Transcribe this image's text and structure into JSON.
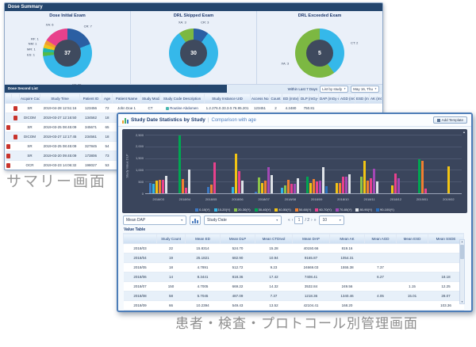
{
  "icons": {
    "chevron_down": "▼",
    "arrow_up": "▲",
    "arrow_down": "▼",
    "pager_first": "«",
    "pager_prev": "‹",
    "pager_next": "›",
    "pager_last": "»"
  },
  "captions": {
    "summary": "サマリー画面",
    "management": "患者・検査・プロトコール別管理画面"
  },
  "summary_window": {
    "title": "Dose Summary",
    "donuts": [
      {
        "title": "Dose Initial Exam",
        "total": "37",
        "slices": [
          {
            "label": "CR: 7",
            "value": 7,
            "color": "#2b5fa3"
          },
          {
            "label": "CT: 20",
            "value": 20,
            "color": "#35b8ea"
          },
          {
            "label": "ES: 1",
            "value": 1,
            "color": "#53b948"
          },
          {
            "label": "MR: 1",
            "value": 1,
            "color": "#1fb5ad"
          },
          {
            "label": "NM: 1",
            "value": 1,
            "color": "#f0c419"
          },
          {
            "label": "RF: 1",
            "value": 1,
            "color": "#f29b30"
          },
          {
            "label": "XA: 6",
            "value": 6,
            "color": "#e8418c"
          }
        ]
      },
      {
        "title": "DRL Skipped Exam",
        "total": "30",
        "slices": [
          {
            "label": "CR: 3",
            "value": 3,
            "color": "#2b5fa3"
          },
          {
            "label": "CT: 24",
            "value": 24,
            "color": "#35b8ea"
          },
          {
            "label": "XA: 3",
            "value": 3,
            "color": "#7cb842"
          }
        ]
      },
      {
        "title": "DRL Exceeded Exam",
        "total": "5",
        "slices": [
          {
            "label": "CT: 2",
            "value": 2,
            "color": "#35b8ea"
          },
          {
            "label": "XA: 3",
            "value": 3,
            "color": "#7cb842"
          }
        ]
      }
    ],
    "list": {
      "title": "Dose Second List",
      "filter_label": "Within Last 7 Days",
      "filter_selects": [
        "List by study",
        "May 16, Thu"
      ],
      "columns": [
        "",
        "",
        "Acquire Code",
        "Study Time",
        "Patient ID",
        "Age",
        "Patient Name",
        "Study Modality",
        "Study Code Description",
        "Study Instance UID",
        "Access No.",
        "Count",
        "ED (mSv)",
        "DLP (mGy·cm)",
        "DAP (mGy·cm2)",
        "AGD (mGy)",
        "ESD (mGy)",
        "AK (mGy)"
      ],
      "rows": [
        {
          "icons": [
            "",
            "pdf"
          ],
          "cells": [
            "SR",
            "2019-04-28 12:51:16",
            "123456",
            "72",
            "John Doe 1",
            "CT",
            "Routine Abdomen",
            "1.2.276.0.33.3.0.76.95.201",
            "123451",
            "2",
            "4.2480",
            "750.81",
            "",
            "",
            "",
            ""
          ]
        },
        {
          "icons": [
            "",
            "pdf"
          ],
          "cells": [
            "DICOM",
            "2019-03-27 12:16:50",
            "134562",
            "18",
            "John Doe 2",
            "CR",
            "Chest",
            "1.2.456.280803.0.53.7552",
            "134562",
            "1",
            "5.8415",
            "",
            "273.10",
            "",
            "",
            ""
          ]
        },
        {
          "icons": [
            "alert",
            ""
          ],
          "cells": [
            "SR",
            "2019-03-25 08:45:09",
            "345671",
            "65",
            "John Doe 3",
            "XA",
            "RunOff Lower Extremity",
            "1.2.840.758.52.125.21.201",
            "345621",
            "147",
            "17.0864",
            "",
            "14902.80",
            "",
            "",
            "930"
          ]
        },
        {
          "icons": [
            "",
            "pdf"
          ],
          "cells": [
            "DICOM",
            "2019-03-27 12:17:45",
            "234561",
            "18",
            "John Doe 2",
            "",
            "",
            "",
            "",
            "",
            "",
            "",
            "",
            "",
            "",
            ""
          ]
        },
        {
          "icons": [
            "alert",
            ""
          ],
          "cells": [
            "SR",
            "2019-03-25 08:45:09",
            "327845",
            "54",
            "John Doe 3",
            "",
            "",
            "",
            "",
            "",
            "",
            "",
            "",
            "",
            "",
            ""
          ]
        },
        {
          "icons": [
            "alert",
            ""
          ],
          "cells": [
            "SR",
            "2019-03-20 09:45:09",
            "173806",
            "73",
            "John Doe 3",
            "",
            "",
            "",
            "",
            "",
            "",
            "",
            "",
            "",
            "",
            ""
          ]
        },
        {
          "icons": [
            "alert",
            ""
          ],
          "cells": [
            "OCR",
            "2019-03-23 14:06:32",
            "198027",
            "53",
            "John Doe 4",
            "",
            "",
            "",
            "",
            "",
            "",
            "",
            "",
            "",
            "",
            ""
          ]
        },
        {
          "icons": [
            "alert",
            "warn"
          ],
          "cells": [
            "OCR",
            "2019-03-23 14:05:32",
            "190528",
            "53",
            "John Doe 4",
            "",
            "",
            "",
            "",
            "",
            "",
            "",
            "",
            "",
            "",
            ""
          ]
        },
        {
          "icons": [
            "",
            "pdf"
          ],
          "cells": [
            "DICOM",
            "2019-03-25 12:07:03",
            "108875",
            "18",
            "John Doe 5",
            "",
            "",
            "",
            "",
            "",
            "",
            "",
            "",
            "",
            "",
            ""
          ]
        }
      ]
    }
  },
  "stats_window": {
    "title": "Study Date Statistics by Study",
    "separator": "|",
    "subtitle": "Comparison with age",
    "add_button": "Add Template",
    "controls": {
      "metric_select": "Mean DAP",
      "axis_select": "Study Date",
      "page_current": "1",
      "page_total": "/ 2",
      "page_size": "10"
    },
    "value_table": {
      "title": "Value Table",
      "columns": [
        "",
        "Study Count",
        "Mean ED",
        "Mean DLP",
        "Mean CTDIvol",
        "Mean DAP",
        "Mean AK",
        "Mean AGD",
        "Mean ESD",
        "Mean SSDE"
      ],
      "rows": [
        [
          "2018/03",
          "22",
          "15.8314",
          "524.70",
          "15.28",
          "40150.66",
          "819.16",
          "",
          "",
          ""
        ],
        [
          "2018/04",
          "19",
          "25.1821",
          "682.90",
          "10.94",
          "9165.87",
          "1054.31",
          "",
          "",
          ""
        ],
        [
          "2018/05",
          "18",
          "4.7891",
          "512.72",
          "9.23",
          "24669.03",
          "1555.38",
          "7.37",
          "",
          ""
        ],
        [
          "2018/06",
          "14",
          "8.3441",
          "818.36",
          "17.42",
          "7408.41",
          "",
          "6.27",
          "",
          "18.18"
        ],
        [
          "2018/07",
          "150",
          "4.7005",
          "669.22",
          "14.32",
          "3532.84",
          "249.56",
          "",
          "1.15",
          "12.25"
        ],
        [
          "2018/08",
          "58",
          "5.7045",
          "487.09",
          "7.37",
          "1218.36",
          "1340.46",
          "4.05",
          "15.01",
          "28.07"
        ],
        [
          "2018/09",
          "66",
          "10.2394",
          "549.43",
          "13.52",
          "42104.41",
          "168.20",
          "",
          "",
          "103.36"
        ],
        [
          "2018/10",
          "61",
          "5.0527",
          "622.81",
          "7.09",
          "3045.03",
          "22.56",
          "8.62",
          "1.64",
          ""
        ]
      ]
    }
  },
  "chart_data": {
    "type": "bar",
    "title": "Study Date Statistics by Study",
    "subtitle": "Comparison with age",
    "xlabel": "Study Date",
    "ylabel": "Study Value DLP",
    "ylim": [
      0,
      2500
    ],
    "yticks": [
      0,
      500,
      1000,
      1500,
      2000,
      2500
    ],
    "grid": true,
    "legend_position": "bottom",
    "categories": [
      "2018/03",
      "2018/04",
      "2018/05",
      "2018/06",
      "2018/07",
      "2018/08",
      "2018/09",
      "2018/10",
      "2018/11",
      "2018/12",
      "2019/01",
      "2019/02"
    ],
    "series": [
      {
        "name": "0-10(Y)",
        "color": "#3b78c3",
        "values": [
          450,
          0,
          280,
          0,
          60,
          0,
          0,
          0,
          0,
          0,
          0,
          0
        ]
      },
      {
        "name": "10-20(Y)",
        "color": "#33b5e5",
        "values": [
          400,
          0,
          0,
          280,
          0,
          250,
          0,
          0,
          0,
          0,
          0,
          0
        ]
      },
      {
        "name": "20-30(Y)",
        "color": "#8bc34a",
        "values": [
          0,
          0,
          0,
          0,
          660,
          350,
          0,
          0,
          700,
          0,
          0,
          0
        ]
      },
      {
        "name": "30-40(Y)",
        "color": "#00a651",
        "values": [
          0,
          2450,
          0,
          0,
          0,
          0,
          700,
          0,
          0,
          0,
          1450,
          0
        ]
      },
      {
        "name": "40-50(Y)",
        "color": "#f2c413",
        "values": [
          540,
          0,
          0,
          1700,
          450,
          0,
          430,
          450,
          1400,
          350,
          0,
          1150
        ]
      },
      {
        "name": "50-60(Y)",
        "color": "#f08030",
        "values": [
          560,
          620,
          380,
          0,
          540,
          570,
          600,
          450,
          550,
          0,
          1400,
          0
        ]
      },
      {
        "name": "60-70(Y)",
        "color": "#e8418c",
        "values": [
          560,
          250,
          1330,
          930,
          0,
          400,
          520,
          700,
          650,
          850,
          200,
          0
        ]
      },
      {
        "name": "70-80(Y)",
        "color": "#a348b5",
        "values": [
          0,
          0,
          0,
          0,
          1130,
          420,
          540,
          700,
          1050,
          650,
          0,
          0
        ]
      },
      {
        "name": "80-90(Y)",
        "color": "#dfe3e8",
        "values": [
          760,
          1000,
          0,
          550,
          780,
          630,
          1100,
          800,
          500,
          0,
          0,
          0
        ]
      },
      {
        "name": "90-100(Y)",
        "color": "#2a6fbd",
        "values": [
          0,
          0,
          0,
          0,
          0,
          0,
          300,
          0,
          0,
          0,
          0,
          0
        ]
      }
    ]
  }
}
